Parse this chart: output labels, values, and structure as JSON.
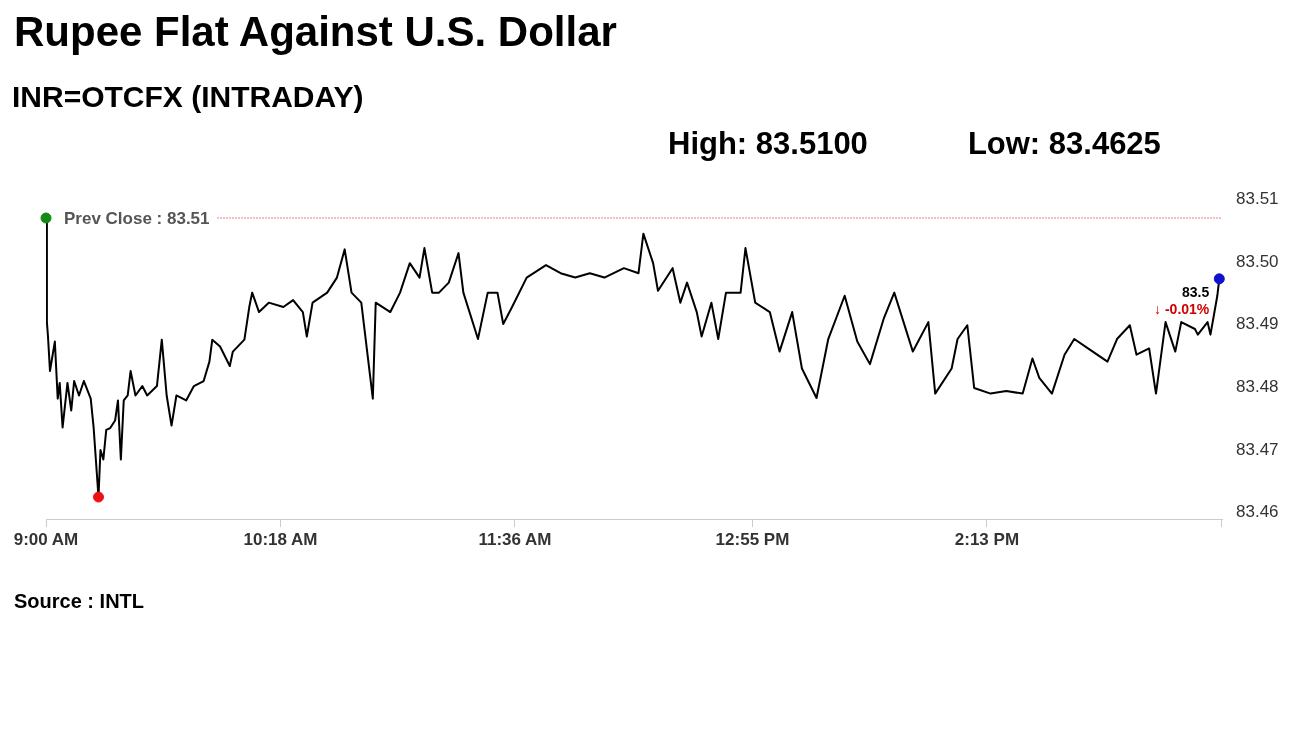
{
  "chart_data": {
    "type": "line",
    "title": "Rupee Flat Against U.S. Dollar",
    "subtitle": "INR=OTCFX (INTRADAY)",
    "annotations": [
      "High: 83.5100",
      "Low: 83.4625",
      {
        "text": "83.5",
        "x": 15.505,
        "y": 83.4973
      },
      {
        "text": "↓ -0.01%",
        "x": 15.505,
        "y": 83.4973
      },
      "Source : INTL"
    ],
    "xlim": [
      9,
      15.52
    ],
    "xticks": [
      {
        "value": 9,
        "label": "9:00 AM"
      },
      {
        "value": 10.3,
        "label": "10:18 AM"
      },
      {
        "value": 11.6,
        "label": "11:36 AM"
      },
      {
        "value": 12.9167,
        "label": "12:55 PM"
      },
      {
        "value": 14.2167,
        "label": "2:13 PM"
      },
      {
        "value": 15.5167,
        "label": null
      }
    ],
    "ylim": [
      83.459,
      83.51
    ],
    "yticks": [
      83.46,
      83.47,
      83.48,
      83.49,
      {
        "value": 83.5,
        "label": "83.50"
      },
      83.51
    ],
    "grid": false,
    "legend": false,
    "line_style": "solid",
    "ref_lines": [
      {
        "axis": "y",
        "value": 83.507,
        "label": "Prev Close : 83.51",
        "color": "#cc0000",
        "line_style": "dotted"
      }
    ],
    "series": [
      {
        "color": "#000000",
        "x": [
          9.0,
          9.005,
          9.011,
          9.022,
          9.049,
          9.065,
          9.076,
          9.092,
          9.119,
          9.14,
          9.156,
          9.183,
          9.21,
          9.248,
          9.264,
          9.291,
          9.302,
          9.318,
          9.334,
          9.356,
          9.383,
          9.399,
          9.415,
          9.431,
          9.453,
          9.469,
          9.496,
          9.534,
          9.561,
          9.615,
          9.642,
          9.669,
          9.696,
          9.723,
          9.777,
          9.82,
          9.874,
          9.906,
          9.922,
          9.965,
          10.019,
          10.036,
          10.1,
          10.127,
          10.143,
          10.181,
          10.235,
          10.316,
          10.37,
          10.424,
          10.446,
          10.478,
          10.559,
          10.613,
          10.656,
          10.694,
          10.748,
          10.812,
          10.828,
          10.909,
          10.963,
          11.017,
          11.071,
          11.098,
          11.141,
          11.179,
          11.233,
          11.287,
          11.314,
          11.395,
          11.449,
          11.503,
          11.535,
          11.584,
          11.665,
          11.772,
          11.853,
          11.934,
          12.015,
          12.096,
          12.204,
          12.285,
          12.312,
          12.366,
          12.393,
          12.474,
          12.517,
          12.554,
          12.608,
          12.635,
          12.689,
          12.727,
          12.77,
          12.851,
          12.878,
          12.932,
          13.013,
          13.067,
          13.137,
          13.191,
          13.272,
          13.337,
          13.428,
          13.498,
          13.568,
          13.644,
          13.703,
          13.806,
          13.892,
          13.93,
          14.021,
          14.054,
          14.108,
          14.146,
          14.237,
          14.324,
          14.415,
          14.469,
          14.507,
          14.577,
          14.647,
          14.701,
          14.777,
          14.885,
          14.938,
          15.009,
          15.046,
          15.116,
          15.154,
          15.207,
          15.261,
          15.294,
          15.37,
          15.386,
          15.44,
          15.456,
          15.494,
          15.505
        ],
        "values": [
          83.507,
          83.4904,
          83.4881,
          83.4826,
          83.4873,
          83.4782,
          83.4807,
          83.4736,
          83.4807,
          83.4763,
          83.481,
          83.4787,
          83.481,
          83.4782,
          83.4736,
          83.4625,
          83.47,
          83.4685,
          83.4732,
          83.4735,
          83.4747,
          83.4779,
          83.4685,
          83.4779,
          83.4787,
          83.4826,
          83.4787,
          83.4802,
          83.4787,
          83.4802,
          83.4876,
          83.4787,
          83.4739,
          83.4787,
          83.4779,
          83.4802,
          83.481,
          83.4841,
          83.4876,
          83.4865,
          83.4834,
          83.4857,
          83.4876,
          83.4928,
          83.4951,
          83.492,
          83.4935,
          83.4928,
          83.4939,
          83.492,
          83.4881,
          83.4935,
          83.4951,
          83.4975,
          83.502,
          83.4951,
          83.4935,
          83.4782,
          83.4935,
          83.492,
          83.4951,
          83.4998,
          83.4975,
          83.5022,
          83.4951,
          83.4951,
          83.4967,
          83.5014,
          83.4951,
          83.4877,
          83.4951,
          83.4951,
          83.4901,
          83.4928,
          83.4975,
          83.4995,
          83.4982,
          83.4975,
          83.4982,
          83.4975,
          83.499,
          83.4982,
          83.5045,
          83.4998,
          83.4954,
          83.499,
          83.4935,
          83.4967,
          83.492,
          83.4881,
          83.4935,
          83.4877,
          83.4951,
          83.4951,
          83.5022,
          83.4935,
          83.492,
          83.4857,
          83.492,
          83.483,
          83.4783,
          83.4877,
          83.4946,
          83.4873,
          83.4837,
          83.4909,
          83.4951,
          83.4857,
          83.4904,
          83.479,
          83.483,
          83.4877,
          83.4899,
          83.4799,
          83.479,
          83.4794,
          83.479,
          83.4846,
          83.4815,
          83.479,
          83.4852,
          83.4877,
          83.4862,
          83.4841,
          83.4877,
          83.4899,
          83.4852,
          83.4862,
          83.479,
          83.4904,
          83.4857,
          83.4904,
          83.4893,
          83.4884,
          83.4904,
          83.4884,
          83.4946,
          83.4973
        ]
      },
      {
        "type": "scatter",
        "x": [
          9.0,
          9.291,
          15.505
        ],
        "values": [
          83.507,
          83.4625,
          83.4973
        ],
        "colors": [
          "#138a13",
          "#ee1111",
          "#1111cc"
        ]
      }
    ]
  }
}
